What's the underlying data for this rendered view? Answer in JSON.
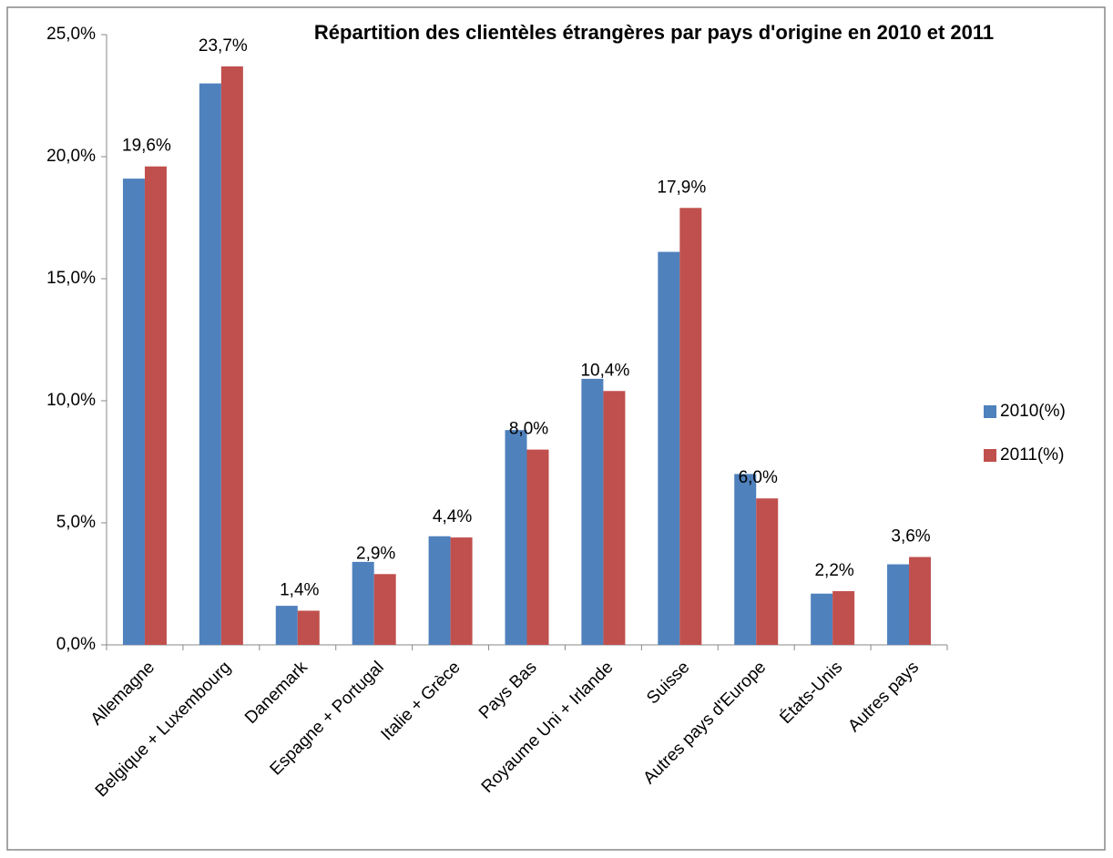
{
  "chart_data": {
    "type": "bar",
    "title": "Répartition des clientèles étrangères par pays d'origine en 2010 et 2011",
    "categories": [
      "Allemagne",
      "Belgique + Luxembourg",
      "Danemark",
      "Espagne + Portugal",
      "Italie + Grèce",
      "Pays Bas",
      "Royaume Uni + Irlande",
      "Suisse",
      "Autres pays d'Europe",
      "États-Unis",
      "Autres pays"
    ],
    "series": [
      {
        "name": "2010(%)",
        "color": "#4f81bd",
        "values": [
          19.1,
          23.0,
          1.6,
          3.4,
          4.45,
          8.8,
          10.9,
          16.1,
          7.0,
          2.1,
          3.3
        ]
      },
      {
        "name": "2011(%)",
        "color": "#c0504d",
        "values": [
          19.6,
          23.7,
          1.4,
          2.9,
          4.4,
          8.0,
          10.4,
          17.9,
          6.0,
          2.2,
          3.6
        ],
        "value_labels": [
          "19,6%",
          "23,7%",
          "1,4%",
          "2,9%",
          "4,4%",
          "8,0%",
          "10,4%",
          "17,9%",
          "6,0%",
          "2,2%",
          "3,6%"
        ]
      }
    ],
    "ylim": [
      0,
      25
    ],
    "yticks": [
      {
        "value": 0,
        "label": "0,0%"
      },
      {
        "value": 5,
        "label": "5,0%"
      },
      {
        "value": 10,
        "label": "10,0%"
      },
      {
        "value": 15,
        "label": "15,0%"
      },
      {
        "value": 20,
        "label": "20,0%"
      },
      {
        "value": 25,
        "label": "25,0%"
      }
    ],
    "grid": false,
    "legend": "right"
  }
}
